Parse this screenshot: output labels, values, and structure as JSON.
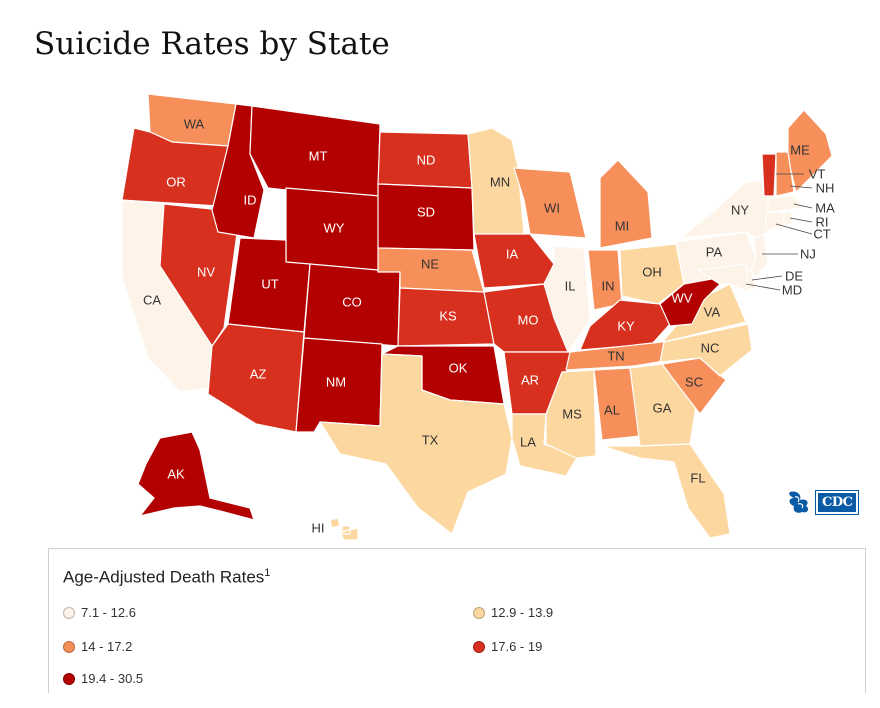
{
  "page": {
    "title": "Suicide Rates by State"
  },
  "colors": {
    "c1": "#fdf3e8",
    "c2": "#fcd79f",
    "c3": "#f78f5b",
    "c4": "#d7301f",
    "c5": "#b30000"
  },
  "legend": {
    "title": "Age-Adjusted Death Rates",
    "footnote": "1",
    "bins": [
      {
        "label": "7.1 - 12.6",
        "color": "#fdf3e8"
      },
      {
        "label": "12.9 - 13.9",
        "color": "#fcd79f"
      },
      {
        "label": "14 - 17.2",
        "color": "#f78f5b"
      },
      {
        "label": "17.6 - 19",
        "color": "#d7301f"
      },
      {
        "label": "19.4 - 30.5",
        "color": "#b30000"
      }
    ]
  },
  "states": {
    "WA": 2,
    "OR": 3,
    "CA": 0,
    "NV": 3,
    "ID": 4,
    "MT": 4,
    "WY": 4,
    "UT": 4,
    "AZ": 3,
    "NM": 4,
    "CO": 4,
    "ND": 3,
    "SD": 4,
    "NE": 2,
    "KS": 3,
    "OK": 4,
    "TX": 1,
    "MN": 1,
    "IA": 3,
    "MO": 3,
    "AR": 3,
    "LA": 1,
    "WI": 2,
    "IL": 0,
    "MI": 2,
    "IN": 2,
    "OH": 1,
    "KY": 3,
    "TN": 2,
    "MS": 1,
    "AL": 2,
    "GA": 1,
    "FL": 1,
    "SC": 2,
    "NC": 1,
    "VA": 1,
    "WV": 4,
    "PA": 0,
    "NY": 0,
    "ME": 2,
    "VT": 3,
    "NH": 2,
    "MA": 0,
    "RI": 0,
    "CT": 0,
    "NJ": 0,
    "DE": 0,
    "MD": 0,
    "AK": 4,
    "HI": 1
  },
  "logo": {
    "text": "CDC"
  }
}
